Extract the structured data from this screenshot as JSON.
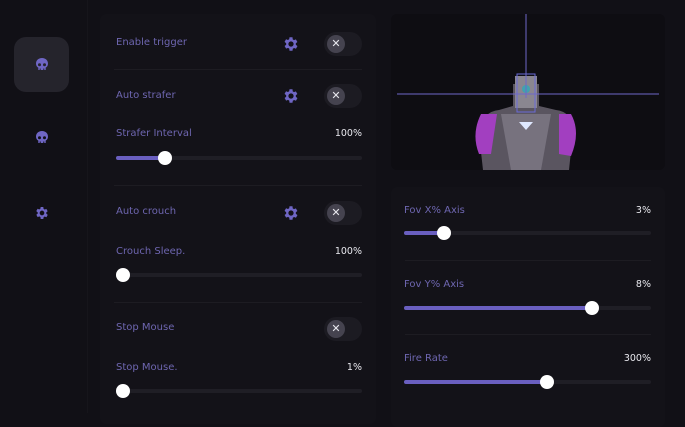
{
  "colors": {
    "accent": "#6a5fc0",
    "label": "#6e66b0",
    "background": "#111016"
  },
  "sidebar": {
    "items": [
      {
        "icon": "skull-icon",
        "active": true
      },
      {
        "icon": "skull-icon",
        "active": false
      },
      {
        "icon": "gear-icon",
        "active": false
      }
    ]
  },
  "left_panel": {
    "enable_trigger": {
      "label": "Enable trigger",
      "enabled": false
    },
    "auto_strafer": {
      "label": "Auto strafer",
      "enabled": false
    },
    "strafer_interval": {
      "label": "Strafer Interval",
      "value": "100%",
      "fill": 20
    },
    "auto_crouch": {
      "label": "Auto crouch",
      "enabled": false
    },
    "crouch_sleep": {
      "label": "Crouch Sleep.",
      "value": "100%",
      "fill": 0
    },
    "stop_mouse": {
      "label": "Stop Mouse",
      "enabled": false
    },
    "stop_mouse_slider": {
      "label": "Stop Mouse.",
      "value": "1%",
      "fill": 0
    }
  },
  "right_panel": {
    "fov_x": {
      "label": "Fov X% Axis",
      "value": "3%",
      "fill": 16
    },
    "fov_y": {
      "label": "Fov Y% Axis",
      "value": "8%",
      "fill": 76
    },
    "fire_rate": {
      "label": "Fire Rate",
      "value": "300%",
      "fill": 58
    }
  },
  "toggle_off_glyph": "✕"
}
